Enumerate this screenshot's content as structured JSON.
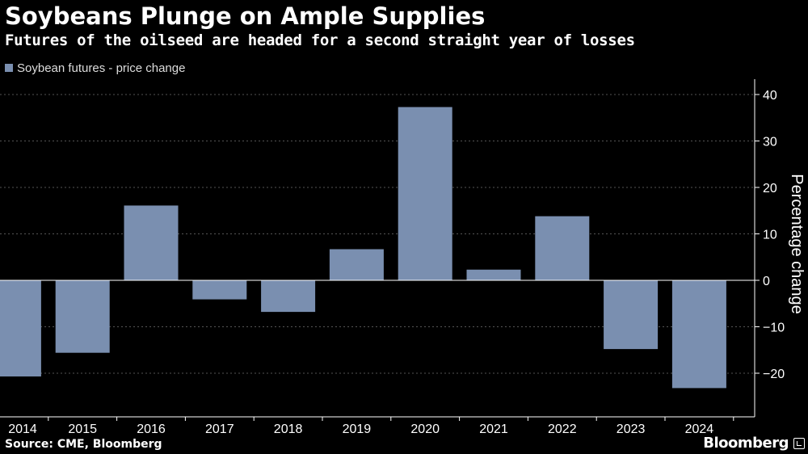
{
  "header": {
    "title": "Soybeans Plunge on Ample Supplies",
    "subtitle": "Futures of the oilseed are headed for a second straight year of losses"
  },
  "footer": {
    "source": "Source: CME, Bloomberg",
    "brand": "Bloomberg"
  },
  "colors": {
    "background": "#000000",
    "bar": "#7a8fb0",
    "grid": "#555555",
    "axis": "#ffffff"
  },
  "chart_data": {
    "type": "bar",
    "categories": [
      "2014",
      "2015",
      "2016",
      "2017",
      "2018",
      "2019",
      "2020",
      "2021",
      "2022",
      "2023",
      "2024"
    ],
    "series": [
      {
        "name": "Soybean futures - price change",
        "values": [
          -20.7,
          -15.6,
          16.1,
          -4.1,
          -6.8,
          6.7,
          37.3,
          2.3,
          13.8,
          -14.8,
          -23.2
        ]
      }
    ],
    "ylabel": "Percentage change",
    "yticks": [
      40,
      30,
      20,
      10,
      0,
      -10,
      -20
    ],
    "ylim": [
      -29,
      43
    ],
    "grid": true,
    "legend": "top-left",
    "yaxis_position": "right"
  }
}
